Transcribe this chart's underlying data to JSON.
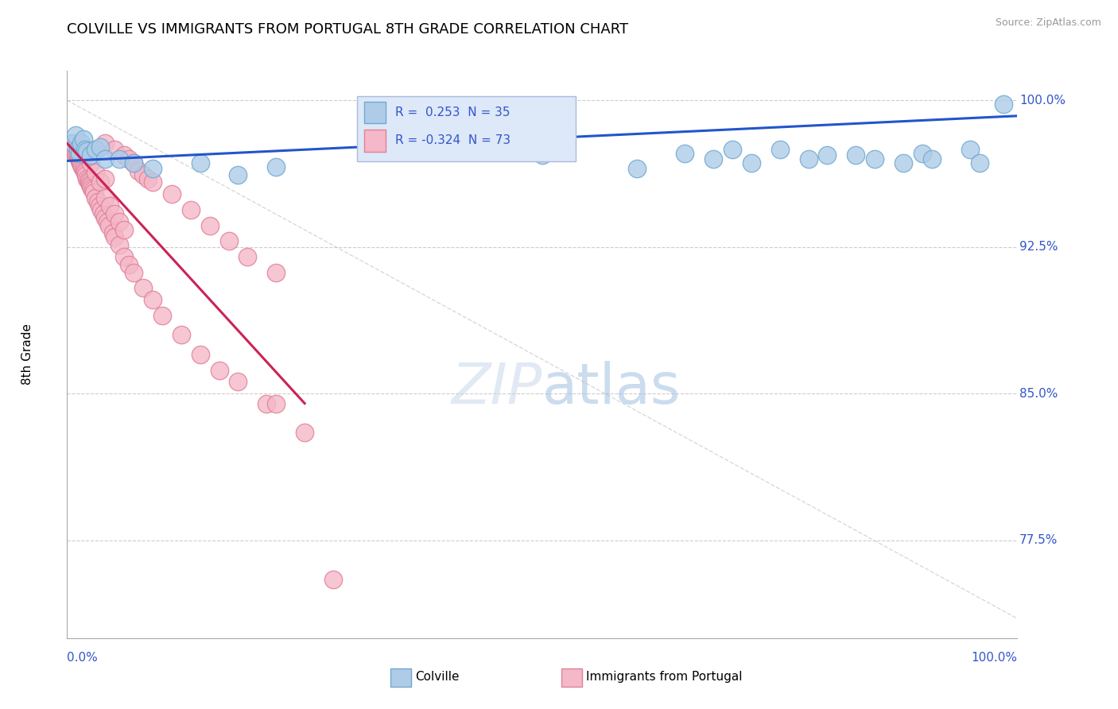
{
  "title": "COLVILLE VS IMMIGRANTS FROM PORTUGAL 8TH GRADE CORRELATION CHART",
  "source": "Source: ZipAtlas.com",
  "ylabel": "8th Grade",
  "xmin": 0.0,
  "xmax": 1.0,
  "ymin": 0.725,
  "ymax": 1.015,
  "yticks": [
    1.0,
    0.925,
    0.85,
    0.775
  ],
  "ytick_labels": [
    "100.0%",
    "92.5%",
    "85.0%",
    "77.5%"
  ],
  "colville_R": 0.253,
  "colville_N": 35,
  "portugal_R": -0.324,
  "portugal_N": 73,
  "colville_color": "#aecce8",
  "colville_edge": "#6fa8d0",
  "portugal_color": "#f4b8c8",
  "portugal_edge": "#e0809a",
  "trend_blue": "#2255cc",
  "trend_pink": "#cc2255",
  "diagonal_color": "#d0d0d0",
  "grid_color": "#cccccc",
  "axis_color": "#3355cc",
  "source_color": "#999999",
  "legend_bg": "#dde8f8",
  "legend_border": "#aabbdd",
  "colville_x": [
    0.006,
    0.009,
    0.011,
    0.013,
    0.015,
    0.017,
    0.019,
    0.021,
    0.025,
    0.03,
    0.035,
    0.04,
    0.055,
    0.07,
    0.09,
    0.14,
    0.18,
    0.22,
    0.5,
    0.6,
    0.65,
    0.68,
    0.7,
    0.72,
    0.75,
    0.78,
    0.8,
    0.83,
    0.85,
    0.88,
    0.9,
    0.91,
    0.95,
    0.96,
    0.985
  ],
  "colville_y": [
    0.978,
    0.982,
    0.975,
    0.973,
    0.978,
    0.98,
    0.975,
    0.974,
    0.972,
    0.975,
    0.976,
    0.97,
    0.97,
    0.968,
    0.965,
    0.968,
    0.962,
    0.966,
    0.972,
    0.965,
    0.973,
    0.97,
    0.975,
    0.968,
    0.975,
    0.97,
    0.972,
    0.972,
    0.97,
    0.968,
    0.973,
    0.97,
    0.975,
    0.968,
    0.998
  ],
  "portugal_x": [
    0.004,
    0.006,
    0.007,
    0.008,
    0.009,
    0.01,
    0.011,
    0.012,
    0.013,
    0.014,
    0.015,
    0.016,
    0.017,
    0.018,
    0.019,
    0.02,
    0.021,
    0.022,
    0.023,
    0.024,
    0.025,
    0.026,
    0.027,
    0.028,
    0.03,
    0.032,
    0.034,
    0.036,
    0.038,
    0.04,
    0.042,
    0.044,
    0.048,
    0.05,
    0.055,
    0.06,
    0.065,
    0.07,
    0.08,
    0.09,
    0.1,
    0.12,
    0.14,
    0.16,
    0.18,
    0.21,
    0.25,
    0.04,
    0.05,
    0.06,
    0.065,
    0.07,
    0.075,
    0.08,
    0.085,
    0.09,
    0.11,
    0.13,
    0.15,
    0.17,
    0.19,
    0.22,
    0.025,
    0.03,
    0.035,
    0.04,
    0.045,
    0.05,
    0.055,
    0.06,
    0.04,
    0.22,
    0.28
  ],
  "portugal_y": [
    0.978,
    0.976,
    0.975,
    0.974,
    0.973,
    0.972,
    0.971,
    0.97,
    0.969,
    0.968,
    0.967,
    0.966,
    0.965,
    0.964,
    0.963,
    0.962,
    0.96,
    0.959,
    0.958,
    0.957,
    0.956,
    0.955,
    0.954,
    0.953,
    0.95,
    0.948,
    0.946,
    0.944,
    0.942,
    0.94,
    0.938,
    0.936,
    0.932,
    0.93,
    0.926,
    0.92,
    0.916,
    0.912,
    0.904,
    0.898,
    0.89,
    0.88,
    0.87,
    0.862,
    0.856,
    0.845,
    0.83,
    0.978,
    0.975,
    0.972,
    0.97,
    0.968,
    0.964,
    0.962,
    0.96,
    0.958,
    0.952,
    0.944,
    0.936,
    0.928,
    0.92,
    0.912,
    0.968,
    0.963,
    0.958,
    0.95,
    0.946,
    0.942,
    0.938,
    0.934,
    0.96,
    0.845,
    0.755
  ],
  "pink_trend_x0": 0.0,
  "pink_trend_y0": 0.978,
  "pink_trend_x1": 0.25,
  "pink_trend_y1": 0.845,
  "blue_trend_x0": 0.0,
  "blue_trend_y0": 0.969,
  "blue_trend_x1": 1.0,
  "blue_trend_y1": 0.992
}
